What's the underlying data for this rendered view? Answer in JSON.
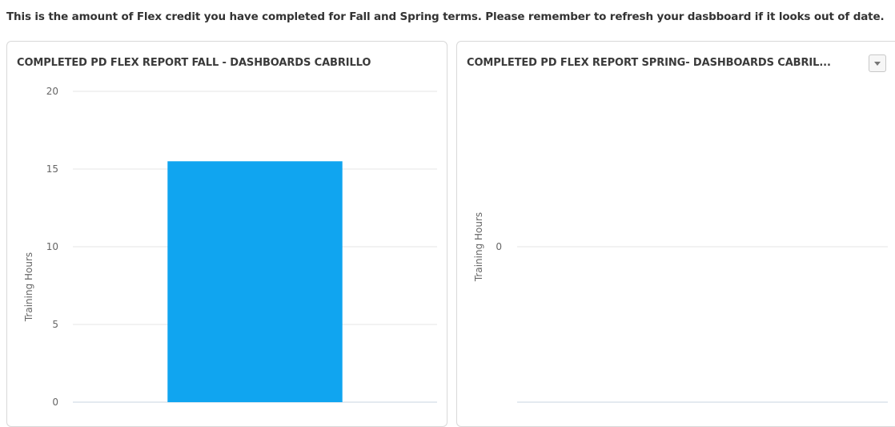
{
  "intro_text": "This is the amount of Flex credit you have completed for Fall and Spring terms. Please remember to refresh your dasbboard if it looks out of date.",
  "colors": {
    "bar": "#10a5f0",
    "grid": "#e6e6e6",
    "axis": "#c9d6e0"
  },
  "chart_data": [
    {
      "type": "bar",
      "title": "COMPLETED PD FLEX REPORT FALL - DASHBOARDS CABRILLO",
      "ylabel": "Training Hours",
      "xlabel": "",
      "categories": [
        ""
      ],
      "values": [
        15.5
      ],
      "ylim": [
        0,
        20
      ],
      "yticks": [
        "0",
        "5",
        "10",
        "15",
        "20"
      ],
      "grid": true
    },
    {
      "type": "bar",
      "title": "COMPLETED PD FLEX REPORT SPRING- DASHBOARDS CABRIL...",
      "ylabel": "Training Hours",
      "xlabel": "",
      "categories": [],
      "values": [],
      "yticks": [
        "0"
      ],
      "grid": true,
      "menu_icon": "chevron-down-icon"
    }
  ]
}
